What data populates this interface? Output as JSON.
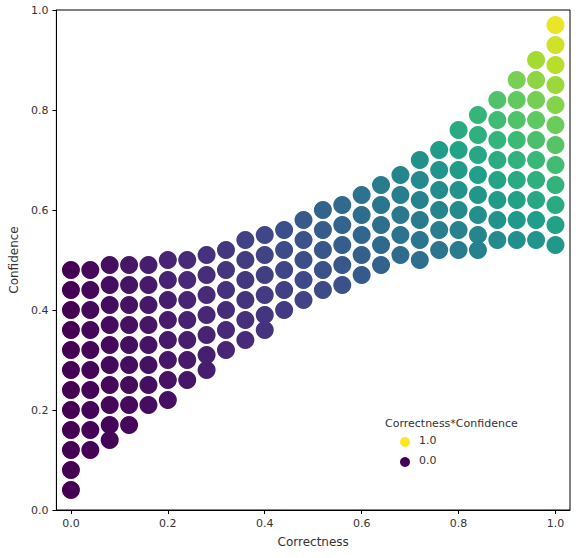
{
  "chart_data": {
    "type": "scatter",
    "x_label": "Correctness",
    "y_label": "Confidence",
    "xlim": [
      -0.03,
      1.03
    ],
    "xticks": [
      {
        "value": 0,
        "label": "0.0"
      },
      0.2,
      0.4,
      0.6,
      0.8,
      {
        "value": 1,
        "label": "1.0"
      }
    ],
    "ylim": [
      0,
      1
    ],
    "yticks": [
      {
        "value": 0,
        "label": "0.0"
      },
      0.2,
      0.4,
      0.6,
      0.8,
      {
        "value": 1,
        "label": "1.0"
      }
    ],
    "grid": false,
    "marker": "circle",
    "color_label": "Correctness*Confidence",
    "color_range": [
      0,
      1
    ],
    "color_ticks": [
      {
        "value": 1,
        "label": "1.0"
      },
      {
        "value": 0,
        "label": "0.0"
      }
    ],
    "values": [
      [
        0,
        0.48
      ],
      [
        0,
        0.44
      ],
      [
        0,
        0.4
      ],
      [
        0,
        0.36
      ],
      [
        0,
        0.32
      ],
      [
        0,
        0.28
      ],
      [
        0,
        0.24
      ],
      [
        0,
        0.2
      ],
      [
        0,
        0.16
      ],
      [
        0,
        0.12
      ],
      [
        0,
        0.08
      ],
      [
        0,
        0.04
      ],
      [
        0.04,
        0.48
      ],
      [
        0.04,
        0.44
      ],
      [
        0.04,
        0.4
      ],
      [
        0.04,
        0.36
      ],
      [
        0.04,
        0.32
      ],
      [
        0.04,
        0.28
      ],
      [
        0.04,
        0.24
      ],
      [
        0.04,
        0.2
      ],
      [
        0.04,
        0.16
      ],
      [
        0.04,
        0.12
      ],
      [
        0.08,
        0.49
      ],
      [
        0.08,
        0.45
      ],
      [
        0.08,
        0.41
      ],
      [
        0.08,
        0.37
      ],
      [
        0.08,
        0.33
      ],
      [
        0.08,
        0.29
      ],
      [
        0.08,
        0.25
      ],
      [
        0.08,
        0.21
      ],
      [
        0.08,
        0.17
      ],
      [
        0.08,
        0.14
      ],
      [
        0.12,
        0.49
      ],
      [
        0.12,
        0.45
      ],
      [
        0.12,
        0.41
      ],
      [
        0.12,
        0.37
      ],
      [
        0.12,
        0.33
      ],
      [
        0.12,
        0.29
      ],
      [
        0.12,
        0.25
      ],
      [
        0.12,
        0.21
      ],
      [
        0.12,
        0.17
      ],
      [
        0.16,
        0.49
      ],
      [
        0.16,
        0.45
      ],
      [
        0.16,
        0.41
      ],
      [
        0.16,
        0.37
      ],
      [
        0.16,
        0.33
      ],
      [
        0.16,
        0.29
      ],
      [
        0.16,
        0.25
      ],
      [
        0.16,
        0.21
      ],
      [
        0.2,
        0.5
      ],
      [
        0.2,
        0.46
      ],
      [
        0.2,
        0.42
      ],
      [
        0.2,
        0.38
      ],
      [
        0.2,
        0.34
      ],
      [
        0.2,
        0.3
      ],
      [
        0.2,
        0.26
      ],
      [
        0.2,
        0.22
      ],
      [
        0.24,
        0.5
      ],
      [
        0.24,
        0.46
      ],
      [
        0.24,
        0.42
      ],
      [
        0.24,
        0.38
      ],
      [
        0.24,
        0.34
      ],
      [
        0.24,
        0.3
      ],
      [
        0.24,
        0.26
      ],
      [
        0.28,
        0.51
      ],
      [
        0.28,
        0.47
      ],
      [
        0.28,
        0.43
      ],
      [
        0.28,
        0.39
      ],
      [
        0.28,
        0.35
      ],
      [
        0.28,
        0.31
      ],
      [
        0.28,
        0.28
      ],
      [
        0.32,
        0.52
      ],
      [
        0.32,
        0.48
      ],
      [
        0.32,
        0.44
      ],
      [
        0.32,
        0.4
      ],
      [
        0.32,
        0.36
      ],
      [
        0.32,
        0.32
      ],
      [
        0.36,
        0.54
      ],
      [
        0.36,
        0.5
      ],
      [
        0.36,
        0.46
      ],
      [
        0.36,
        0.42
      ],
      [
        0.36,
        0.38
      ],
      [
        0.36,
        0.34
      ],
      [
        0.4,
        0.55
      ],
      [
        0.4,
        0.51
      ],
      [
        0.4,
        0.47
      ],
      [
        0.4,
        0.43
      ],
      [
        0.4,
        0.39
      ],
      [
        0.4,
        0.36
      ],
      [
        0.44,
        0.56
      ],
      [
        0.44,
        0.52
      ],
      [
        0.44,
        0.48
      ],
      [
        0.44,
        0.44
      ],
      [
        0.44,
        0.4
      ],
      [
        0.48,
        0.58
      ],
      [
        0.48,
        0.54
      ],
      [
        0.48,
        0.5
      ],
      [
        0.48,
        0.46
      ],
      [
        0.48,
        0.42
      ],
      [
        0.52,
        0.6
      ],
      [
        0.52,
        0.56
      ],
      [
        0.52,
        0.52
      ],
      [
        0.52,
        0.48
      ],
      [
        0.52,
        0.44
      ],
      [
        0.56,
        0.61
      ],
      [
        0.56,
        0.57
      ],
      [
        0.56,
        0.53
      ],
      [
        0.56,
        0.49
      ],
      [
        0.56,
        0.45
      ],
      [
        0.6,
        0.63
      ],
      [
        0.6,
        0.59
      ],
      [
        0.6,
        0.55
      ],
      [
        0.6,
        0.51
      ],
      [
        0.6,
        0.47
      ],
      [
        0.64,
        0.65
      ],
      [
        0.64,
        0.61
      ],
      [
        0.64,
        0.57
      ],
      [
        0.64,
        0.53
      ],
      [
        0.64,
        0.49
      ],
      [
        0.68,
        0.67
      ],
      [
        0.68,
        0.63
      ],
      [
        0.68,
        0.59
      ],
      [
        0.68,
        0.55
      ],
      [
        0.68,
        0.51
      ],
      [
        0.72,
        0.7
      ],
      [
        0.72,
        0.66
      ],
      [
        0.72,
        0.62
      ],
      [
        0.72,
        0.58
      ],
      [
        0.72,
        0.54
      ],
      [
        0.72,
        0.5
      ],
      [
        0.76,
        0.72
      ],
      [
        0.76,
        0.68
      ],
      [
        0.76,
        0.64
      ],
      [
        0.76,
        0.6
      ],
      [
        0.76,
        0.56
      ],
      [
        0.76,
        0.52
      ],
      [
        0.8,
        0.76
      ],
      [
        0.8,
        0.72
      ],
      [
        0.8,
        0.68
      ],
      [
        0.8,
        0.64
      ],
      [
        0.8,
        0.6
      ],
      [
        0.8,
        0.56
      ],
      [
        0.8,
        0.52
      ],
      [
        0.84,
        0.79
      ],
      [
        0.84,
        0.75
      ],
      [
        0.84,
        0.71
      ],
      [
        0.84,
        0.67
      ],
      [
        0.84,
        0.63
      ],
      [
        0.84,
        0.59
      ],
      [
        0.84,
        0.55
      ],
      [
        0.84,
        0.52
      ],
      [
        0.88,
        0.82
      ],
      [
        0.88,
        0.78
      ],
      [
        0.88,
        0.74
      ],
      [
        0.88,
        0.7
      ],
      [
        0.88,
        0.66
      ],
      [
        0.88,
        0.62
      ],
      [
        0.88,
        0.58
      ],
      [
        0.88,
        0.54
      ],
      [
        0.92,
        0.86
      ],
      [
        0.92,
        0.82
      ],
      [
        0.92,
        0.78
      ],
      [
        0.92,
        0.74
      ],
      [
        0.92,
        0.7
      ],
      [
        0.92,
        0.66
      ],
      [
        0.92,
        0.62
      ],
      [
        0.92,
        0.58
      ],
      [
        0.92,
        0.54
      ],
      [
        0.96,
        0.9
      ],
      [
        0.96,
        0.86
      ],
      [
        0.96,
        0.82
      ],
      [
        0.96,
        0.78
      ],
      [
        0.96,
        0.74
      ],
      [
        0.96,
        0.7
      ],
      [
        0.96,
        0.66
      ],
      [
        0.96,
        0.62
      ],
      [
        0.96,
        0.58
      ],
      [
        0.96,
        0.54
      ],
      [
        1,
        0.97
      ],
      [
        1,
        0.93
      ],
      [
        1,
        0.89
      ],
      [
        1,
        0.85
      ],
      [
        1,
        0.81
      ],
      [
        1,
        0.77
      ],
      [
        1,
        0.73
      ],
      [
        1,
        0.69
      ],
      [
        1,
        0.65
      ],
      [
        1,
        0.61
      ],
      [
        1,
        0.57
      ],
      [
        1,
        0.53
      ]
    ]
  }
}
